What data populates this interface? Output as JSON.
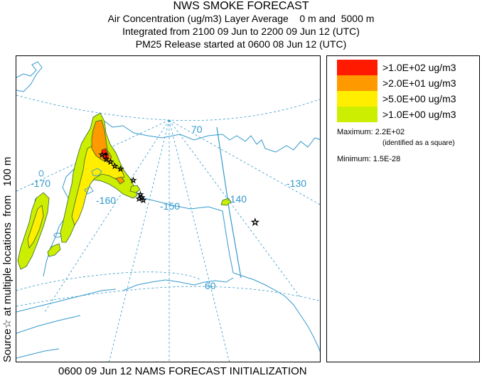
{
  "titles": {
    "line1": "NWS SMOKE FORECAST",
    "line2": "Air Concentration (ug/m3) Layer Average    0 m and  5000 m",
    "line3": "Integrated from 2100 09 Jun to 2200 09 Jun 12 (UTC)",
    "line4": "PM25 Release started at 0600 08 Jun 12 (UTC)"
  },
  "side_label": "Source☆ at multiple locations  from   100 m",
  "map": {
    "lon_labels": [
      "-170",
      "-160",
      "-150",
      "-140",
      "-130"
    ],
    "lat_labels": [
      "70",
      "60"
    ]
  },
  "legend": {
    "entries": [
      {
        "label": ">1.0E+02 ug/m3",
        "color": "#ff1a00"
      },
      {
        "label": ">2.0E+01 ug/m3",
        "color": "#ff9900"
      },
      {
        "label": ">5.0E+00 ug/m3",
        "color": "#ffee00"
      },
      {
        "label": ">1.0E+00 ug/m3",
        "color": "#ccee00"
      }
    ],
    "maximum": "Maximum: 2.2E+02",
    "maximum_note": "(identified as a square)",
    "minimum": "Minimum: 1.5E-28"
  },
  "footer": "0600 09 Jun 12 NAMS FORECAST INITIALIZATION",
  "colors": {
    "coast": "#3399cc",
    "graticule": "#3399cc",
    "plume_outline": "#336633"
  }
}
